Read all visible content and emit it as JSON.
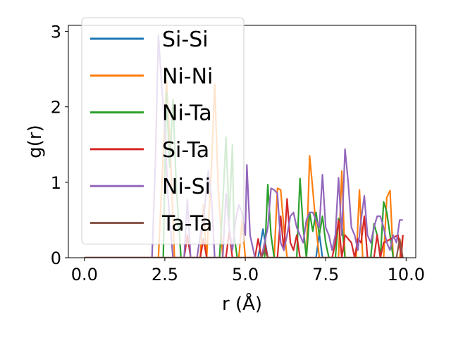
{
  "chart_data": {
    "type": "line",
    "xlabel": "r (Å)",
    "ylabel": "g(r)",
    "xlim": [
      -0.5,
      10.3
    ],
    "ylim": [
      0,
      3.08
    ],
    "xticks": [
      0.0,
      2.5,
      5.0,
      7.5,
      10.0
    ],
    "xtick_labels": [
      "0.0",
      "2.5",
      "5.0",
      "7.5",
      "10.0"
    ],
    "yticks": [
      0,
      1,
      2,
      3
    ],
    "ytick_labels": [
      "0",
      "1",
      "2",
      "3"
    ],
    "grid": false,
    "legend_position": "top-left",
    "series": [
      {
        "name": "Si-Si",
        "color": "#1f77b4",
        "x": [
          0,
          5.4,
          5.55,
          5.7,
          7.2,
          7.3,
          7.4,
          9.9
        ],
        "y": [
          0,
          0,
          0.38,
          0,
          0,
          0.32,
          0,
          0
        ]
      },
      {
        "name": "Ni-Ni",
        "color": "#ff7f0e",
        "x": [
          0,
          2.3,
          2.45,
          2.55,
          2.65,
          2.8,
          3.6,
          3.7,
          3.8,
          3.95,
          4.05,
          4.15,
          4.3,
          4.8,
          4.9,
          5.0,
          5.9,
          6.0,
          6.1,
          6.2,
          6.3,
          6.45,
          6.9,
          7.0,
          7.1,
          7.2,
          7.3,
          7.9,
          8.0,
          8.1,
          8.45,
          8.55,
          8.65,
          9.3,
          9.4,
          9.5,
          9.6,
          9.8,
          9.9
        ],
        "y": [
          0,
          0,
          1.4,
          2.35,
          1.6,
          0,
          0,
          0.7,
          0,
          1.2,
          2.3,
          1.0,
          0,
          0,
          0.5,
          0,
          0,
          0.92,
          0.9,
          0.4,
          0,
          0,
          0,
          1.35,
          0.9,
          0.4,
          0,
          0,
          1.15,
          0,
          0,
          0.9,
          0,
          0,
          0.8,
          0.89,
          0,
          0,
          0.3
        ]
      },
      {
        "name": "Ni-Ta",
        "color": "#2ca02c",
        "x": [
          0,
          2.45,
          2.55,
          2.65,
          2.75,
          2.85,
          3.0,
          4.2,
          4.3,
          4.4,
          4.5,
          4.6,
          4.65,
          4.75,
          5.6,
          5.7,
          5.8,
          5.9,
          6.6,
          6.7,
          6.8,
          6.9,
          7.0,
          7.1,
          7.2,
          7.3,
          7.4,
          7.5,
          7.6,
          7.8,
          7.9,
          8.0,
          8.1,
          8.9,
          9.0,
          9.1,
          9.2,
          9.3,
          9.4,
          9.5,
          9.6
        ],
        "y": [
          0,
          0,
          2.2,
          1.2,
          2.1,
          1.0,
          0,
          0,
          0.7,
          1.6,
          0.5,
          1.5,
          0.3,
          0,
          0,
          0.97,
          0.3,
          0,
          0,
          1.05,
          0.4,
          0,
          0.6,
          0.35,
          0.6,
          0.3,
          0.55,
          0.2,
          0,
          0,
          0.52,
          0.45,
          0,
          0,
          0.45,
          0.3,
          0,
          0.74,
          0.6,
          0.3,
          0
        ]
      },
      {
        "name": "Si-Ta",
        "color": "#d62728",
        "x": [
          0,
          3.1,
          3.2,
          3.3,
          3.6,
          3.7,
          3.8,
          4.4,
          4.5,
          4.6,
          5.3,
          5.4,
          5.5,
          5.6,
          5.7,
          6.0,
          6.1,
          6.2,
          6.3,
          6.4,
          6.5,
          6.6,
          6.7,
          7.7,
          7.8,
          7.9,
          8.0,
          8.1,
          8.3,
          8.4,
          8.5,
          8.6,
          8.7,
          8.8,
          9.0,
          9.1,
          9.2,
          9.3,
          9.75,
          9.85,
          9.9
        ],
        "y": [
          0,
          0,
          0.3,
          0,
          0,
          0.25,
          0,
          0,
          0.35,
          0,
          0,
          0.25,
          0,
          0.2,
          0,
          0,
          0.55,
          0.1,
          0.78,
          0.2,
          0.1,
          0.3,
          0,
          0,
          0.2,
          0.5,
          0,
          0.3,
          0.2,
          0,
          0.25,
          0.2,
          0.55,
          0,
          0,
          0.3,
          0,
          0.2,
          0.3,
          0,
          0.3
        ]
      },
      {
        "name": "Ni-Si",
        "color": "#9467bd",
        "x": [
          0,
          2.1,
          2.2,
          2.3,
          2.4,
          2.5,
          2.6,
          2.75,
          3.1,
          3.2,
          3.3,
          3.5,
          3.6,
          3.7,
          3.85,
          3.95,
          4.05,
          4.3,
          4.4,
          4.5,
          4.6,
          4.7,
          4.8,
          4.9,
          5.0,
          5.05,
          5.15,
          5.3,
          5.5,
          5.6,
          5.7,
          5.8,
          5.9,
          6.0,
          6.1,
          6.2,
          6.3,
          6.4,
          6.5,
          6.6,
          6.7,
          6.8,
          6.9,
          7.0,
          7.1,
          7.2,
          7.3,
          7.4,
          7.5,
          7.6,
          7.7,
          7.8,
          7.9,
          8.0,
          8.1,
          8.2,
          8.3,
          8.4,
          8.5,
          8.6,
          8.7,
          8.8,
          8.9,
          9.0,
          9.1,
          9.2,
          9.3,
          9.4,
          9.5,
          9.6,
          9.7,
          9.8,
          9.9
        ],
        "y": [
          0,
          0,
          1.2,
          2.95,
          2.3,
          1.7,
          0.8,
          0,
          0,
          0.77,
          0,
          0,
          0.3,
          0.5,
          1.15,
          0.8,
          0,
          0,
          0.85,
          0.4,
          0.1,
          0.5,
          0.7,
          0.6,
          0.3,
          1.23,
          0.3,
          0,
          0,
          0.2,
          0.4,
          0.92,
          0.9,
          0.85,
          0.2,
          0.1,
          0.3,
          0.55,
          0.6,
          0.4,
          0.3,
          0.2,
          0.5,
          0.6,
          0.6,
          0.5,
          0.4,
          1.1,
          0.4,
          0.3,
          0.1,
          0.3,
          1.06,
          0.3,
          1.44,
          1.0,
          0.4,
          0.3,
          0.1,
          0.5,
          0.82,
          0.3,
          0.2,
          0.4,
          0.55,
          0.55,
          0.4,
          0.2,
          0.1,
          0.3,
          0.2,
          0.5,
          0.5
        ]
      },
      {
        "name": "Ta-Ta",
        "color": "#8c564b",
        "x": [
          0,
          5.5,
          5.6,
          5.7,
          9.7,
          9.8,
          9.9
        ],
        "y": [
          0,
          0,
          0.1,
          0,
          0,
          0.25,
          0
        ]
      }
    ]
  }
}
